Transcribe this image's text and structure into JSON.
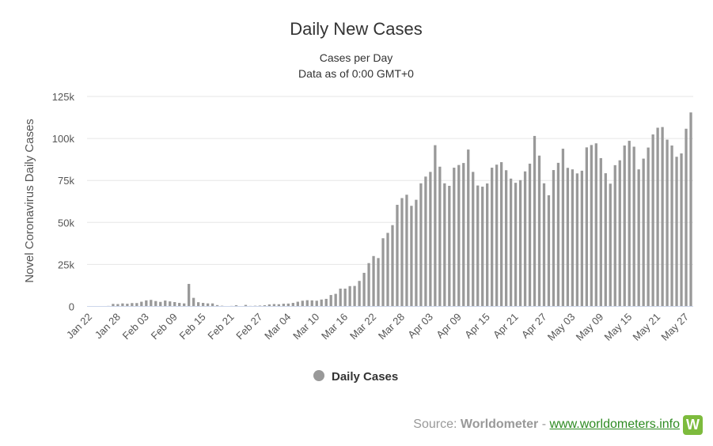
{
  "chart_data": {
    "type": "bar",
    "title": "Daily New Cases",
    "subtitle_lines": [
      "Cases per Day",
      "Data as of 0:00 GMT+0"
    ],
    "ylabel": "Novel Coronavirus Daily Cases",
    "xlabel": "",
    "ylim": [
      0,
      125000
    ],
    "y_ticks": [
      0,
      25000,
      50000,
      75000,
      100000,
      125000
    ],
    "y_tick_labels": [
      "0",
      "25k",
      "50k",
      "75k",
      "100k",
      "125k"
    ],
    "x_tick_labels": [
      "Jan 22",
      "Jan 28",
      "Feb 03",
      "Feb 09",
      "Feb 15",
      "Feb 21",
      "Feb 27",
      "Mar 04",
      "Mar 10",
      "Mar 16",
      "Mar 22",
      "Mar 28",
      "Apr 03",
      "Apr 09",
      "Apr 15",
      "Apr 21",
      "Apr 27",
      "May 03",
      "May 09",
      "May 15",
      "May 21",
      "May 27"
    ],
    "x_tick_interval_days": 6,
    "grid": "horizontal",
    "legend_position": "bottom-center",
    "bar_color": "#999999",
    "series": [
      {
        "name": "Daily Cases",
        "start_date": "Jan 22",
        "values": [
          0,
          100,
          150,
          100,
          300,
          1500,
          1400,
          1800,
          1600,
          2000,
          2000,
          2800,
          3600,
          3900,
          3200,
          2700,
          3500,
          3000,
          2600,
          2100,
          1800,
          13400,
          5100,
          2500,
          2100,
          1800,
          1800,
          800,
          400,
          200,
          300,
          700,
          200,
          900,
          300,
          400,
          500,
          700,
          1200,
          1400,
          1300,
          1600,
          1700,
          2100,
          2800,
          3400,
          3700,
          3600,
          3400,
          4100,
          4500,
          6800,
          7500,
          10600,
          10600,
          12100,
          12200,
          15200,
          20000,
          25800,
          30000,
          28800,
          40600,
          43800,
          48400,
          60500,
          64500,
          66500,
          59900,
          63500,
          73300,
          77300,
          80100,
          96000,
          83200,
          73300,
          71800,
          82600,
          84200,
          85400,
          93400,
          80100,
          72000,
          71300,
          73200,
          82600,
          84400,
          85900,
          81100,
          76100,
          73600,
          75200,
          80400,
          85000,
          101500,
          89800,
          73300,
          66200,
          81200,
          85500,
          93900,
          82500,
          81600,
          79200,
          80800,
          94700,
          96100,
          97100,
          88300,
          79300,
          73100,
          84100,
          87000,
          95800,
          98600,
          95100,
          81600,
          88000,
          94600,
          102400,
          106400,
          106800,
          99300,
          95800,
          89100,
          91100,
          105800,
          115500
        ]
      }
    ]
  },
  "source": {
    "prefix": "Source:",
    "brand": "Worldometer",
    "separator": "-",
    "link": "www.worldometers.info",
    "logo_letter": "W"
  }
}
